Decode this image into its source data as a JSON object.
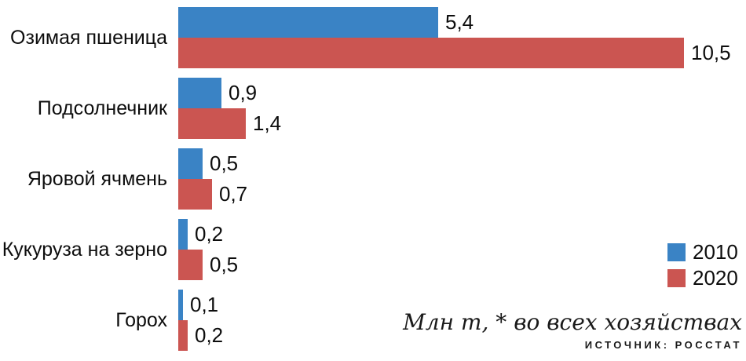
{
  "colors": {
    "series_2010": "#3a83c5",
    "series_2020": "#cb5551",
    "text": "#0d0d0d"
  },
  "chart_data": {
    "type": "bar",
    "orientation": "horizontal",
    "title": "",
    "xlabel": "",
    "ylabel": "",
    "grid": false,
    "legend_position": "right",
    "xlim": [
      0,
      11.7
    ],
    "categories": [
      "Озимая пшеница",
      "Подсолнечник",
      "Яровой ячмень",
      "Кукуруза на зерно",
      "Горох"
    ],
    "series": [
      {
        "name": "2010",
        "color": "#3a83c5",
        "values": [
          5.4,
          0.9,
          0.5,
          0.2,
          0.1
        ],
        "value_labels": [
          "5,4",
          "0,9",
          "0,5",
          "0,2",
          "0,1"
        ]
      },
      {
        "name": "2020",
        "color": "#cb5551",
        "values": [
          10.5,
          1.4,
          0.7,
          0.5,
          0.2
        ],
        "value_labels": [
          "10,5",
          "1,4",
          "0,7",
          "0,5",
          "0,2"
        ]
      }
    ],
    "units_note": "Млн т, * во всех хозяйствах",
    "source_note": "ИСТОЧНИК: РОССТАТ"
  },
  "legend": {
    "items": [
      {
        "label": "2010",
        "color": "#3a83c5"
      },
      {
        "label": "2020",
        "color": "#cb5551"
      }
    ]
  },
  "footer": {
    "units_note": "Млн т, * во всех хозяйствах",
    "source_note": "ИСТОЧНИК: РОССТАТ"
  }
}
